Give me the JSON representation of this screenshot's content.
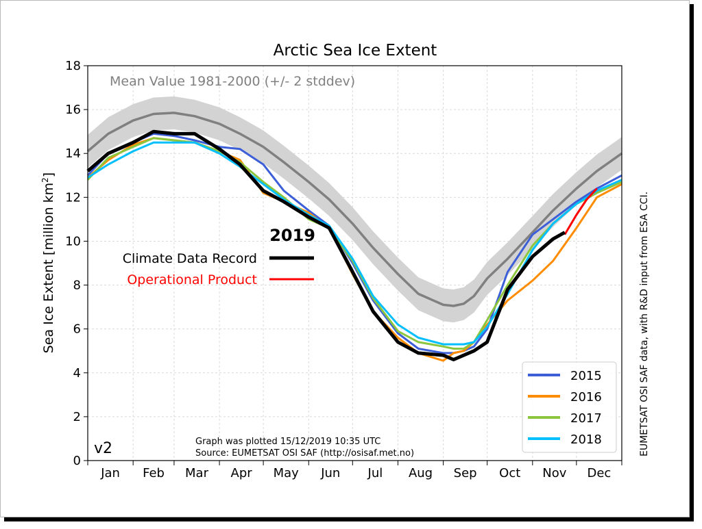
{
  "chart_data": {
    "type": "line",
    "title": "Arctic Sea Ice Extent",
    "ylabel": "Sea Ice Extent [million km",
    "ylabel_sup": "2",
    "ylabel_end": "]",
    "ylim": [
      0,
      18
    ],
    "xlim": [
      1,
      366
    ],
    "yticks": [
      "0",
      "2",
      "4",
      "6",
      "8",
      "10",
      "12",
      "14",
      "16",
      "18"
    ],
    "months": [
      "Jan",
      "Feb",
      "Mar",
      "Apr",
      "May",
      "Jun",
      "Jul",
      "Aug",
      "Sep",
      "Oct",
      "Nov",
      "Dec"
    ],
    "grid": true,
    "mean_label": "Mean Value 1981-2000 (+/- 2 stddev)",
    "version_label": "v2",
    "footnote_line1": "Graph was plotted 15/12/2019 10:35 UTC",
    "footnote_line2": "Source: EUMETSAT OSI SAF (http://osisaf.met.no)",
    "side_credit": "EUMETSAT OSI SAF data, with R&D input from ESA CCI.",
    "year_label": "2019",
    "cdr_label": "Climate Data Record",
    "op_label": "Operational Product",
    "legend_position": "lower right",
    "mean": {
      "days": [
        1,
        15,
        32,
        46,
        60,
        74,
        91,
        105,
        121,
        135,
        152,
        166,
        182,
        196,
        213,
        227,
        244,
        251,
        258,
        265,
        274,
        288,
        305,
        319,
        335,
        349,
        366
      ],
      "values": [
        14.1,
        14.9,
        15.5,
        15.8,
        15.85,
        15.7,
        15.35,
        14.9,
        14.3,
        13.6,
        12.7,
        11.9,
        10.8,
        9.7,
        8.5,
        7.6,
        7.1,
        7.05,
        7.15,
        7.5,
        8.3,
        9.2,
        10.4,
        11.4,
        12.4,
        13.2,
        14.0
      ],
      "stddev2": 0.75
    },
    "series": [
      {
        "name": "2015",
        "color": "#3c5fd8",
        "days": [
          1,
          15,
          32,
          46,
          60,
          74,
          91,
          105,
          121,
          135,
          152,
          166,
          182,
          196,
          213,
          227,
          244,
          251,
          258,
          265,
          274,
          288,
          305,
          319,
          335,
          349,
          366
        ],
        "values": [
          13.0,
          14.0,
          14.5,
          14.9,
          14.8,
          14.6,
          14.3,
          14.2,
          13.5,
          12.3,
          11.4,
          10.7,
          9.0,
          7.3,
          5.8,
          5.1,
          4.9,
          4.9,
          5.0,
          5.2,
          6.0,
          8.6,
          10.3,
          11.0,
          11.8,
          12.4,
          13.0
        ]
      },
      {
        "name": "2016",
        "color": "#ff8c00",
        "days": [
          1,
          15,
          32,
          46,
          60,
          74,
          91,
          105,
          121,
          135,
          152,
          166,
          182,
          196,
          213,
          227,
          244,
          251,
          258,
          265,
          274,
          288,
          305,
          319,
          335,
          349,
          366
        ],
        "values": [
          12.9,
          13.7,
          14.4,
          14.7,
          14.6,
          14.5,
          14.1,
          13.7,
          12.2,
          11.8,
          11.3,
          10.6,
          8.5,
          6.8,
          5.6,
          4.9,
          4.55,
          4.9,
          5.0,
          5.4,
          6.2,
          7.3,
          8.2,
          9.1,
          10.6,
          12.0,
          12.6
        ]
      },
      {
        "name": "2017",
        "color": "#8cc63f",
        "days": [
          1,
          15,
          32,
          46,
          60,
          74,
          91,
          105,
          121,
          135,
          152,
          166,
          182,
          196,
          213,
          227,
          244,
          251,
          258,
          265,
          274,
          288,
          305,
          319,
          335,
          349,
          366
        ],
        "values": [
          12.8,
          13.8,
          14.3,
          14.7,
          14.6,
          14.5,
          14.1,
          13.6,
          12.7,
          12.0,
          11.0,
          10.6,
          9.1,
          7.4,
          5.9,
          5.4,
          5.2,
          5.1,
          5.1,
          5.4,
          6.4,
          8.0,
          9.8,
          10.8,
          11.7,
          12.2,
          12.7
        ]
      },
      {
        "name": "2018",
        "color": "#00bfff",
        "days": [
          1,
          15,
          32,
          46,
          60,
          74,
          91,
          105,
          121,
          135,
          152,
          166,
          182,
          196,
          213,
          227,
          244,
          251,
          258,
          265,
          274,
          288,
          305,
          319,
          335,
          349,
          366
        ],
        "values": [
          12.9,
          13.5,
          14.1,
          14.5,
          14.5,
          14.5,
          14.0,
          13.4,
          12.6,
          11.9,
          11.2,
          10.7,
          9.2,
          7.5,
          6.2,
          5.6,
          5.3,
          5.3,
          5.3,
          5.4,
          6.1,
          7.6,
          9.6,
          10.8,
          11.7,
          12.3,
          12.8
        ]
      }
    ],
    "cdr_2019": {
      "color": "#000000",
      "days": [
        1,
        15,
        32,
        46,
        60,
        74,
        91,
        105,
        121,
        135,
        152,
        166,
        182,
        196,
        213,
        227,
        244,
        251,
        258,
        265,
        274,
        288,
        305,
        319,
        327
      ],
      "values": [
        13.2,
        14.0,
        14.5,
        15.0,
        14.9,
        14.9,
        14.2,
        13.5,
        12.3,
        11.8,
        11.1,
        10.6,
        8.6,
        6.8,
        5.4,
        4.9,
        4.8,
        4.6,
        4.8,
        5.0,
        5.4,
        7.8,
        9.3,
        10.1,
        10.4
      ]
    },
    "op_2019": {
      "color": "#ff0000",
      "days": [
        327,
        335,
        342,
        349
      ],
      "values": [
        10.3,
        11.2,
        11.9,
        12.4
      ]
    }
  }
}
